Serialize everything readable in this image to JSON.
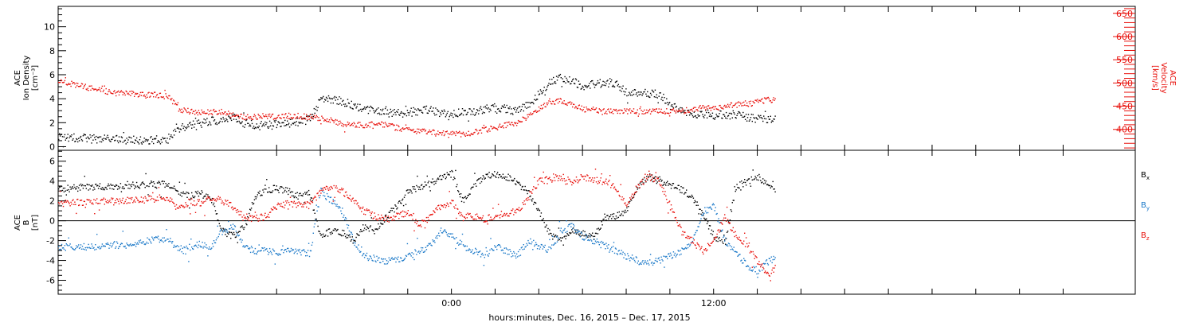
{
  "chart_data": [
    {
      "type": "scatter",
      "panel": "top",
      "x_hours": [
        -18,
        12.5
      ],
      "left_axis": {
        "ylabel_lines": [
          "ACE",
          "Ion Density",
          "[cm⁻³]"
        ],
        "ylim": [
          -0.3,
          11.7
        ],
        "ticks": [
          0,
          2,
          4,
          6,
          8,
          10
        ],
        "tick_labels": [
          "0",
          "2",
          "4",
          "6",
          "8",
          "10"
        ]
      },
      "right_axis": {
        "ylabel_lines": [
          "ACE",
          "Velocity",
          "[km/s]"
        ],
        "ylim": [
          355,
          665
        ],
        "ticks": [
          400,
          450,
          500,
          550,
          600,
          650
        ],
        "tick_labels": [
          "400",
          "450",
          "500",
          "550",
          "600",
          "650"
        ],
        "color": "#e8100b"
      },
      "series": [
        {
          "color": "#000000",
          "axis": "left",
          "x": [
            -18,
            -17.5,
            -17,
            -16.5,
            -16,
            -15.5,
            -15,
            -14.5,
            -14,
            -13.5,
            -13,
            -12.5,
            -12,
            -11.5,
            -11,
            -10.5,
            -10,
            -9.5,
            -9,
            -8.5,
            -8,
            -7.5,
            -7,
            -6.5,
            -6,
            -5.5,
            -5,
            -4.5,
            -4,
            -3.5,
            -3,
            -2.5,
            -2,
            -1.5,
            -1,
            -0.5,
            0,
            0.5,
            1,
            1.5,
            2,
            2.5,
            3,
            3.5,
            4,
            4.5,
            5,
            5.5,
            6,
            6.5,
            7,
            7.5,
            8,
            8.5,
            9,
            9.5,
            10,
            10.5,
            11,
            11.5,
            12,
            12.5,
            13,
            13.5,
            14,
            14.5,
            15
          ],
          "y": [
            0.8,
            0.8,
            0.8,
            0.7,
            0.7,
            0.7,
            0.6,
            0.6,
            0.6,
            0.6,
            0.6,
            1.6,
            1.8,
            2.0,
            2.2,
            2.3,
            2.5,
            2.0,
            1.8,
            1.8,
            1.9,
            2.0,
            2.1,
            2.3,
            4.0,
            4.0,
            3.8,
            3.5,
            3.2,
            3.0,
            2.9,
            2.8,
            2.9,
            3.0,
            3.2,
            2.8,
            2.7,
            3.0,
            3.0,
            3.2,
            3.3,
            3.2,
            3.0,
            3.5,
            4.5,
            5.5,
            5.8,
            5.5,
            5.0,
            5.3,
            5.3,
            5.3,
            4.5,
            4.5,
            4.5,
            4.4,
            3.5,
            3.0,
            2.8,
            2.8,
            2.7,
            2.7,
            2.7,
            2.5,
            2.4,
            2.3,
            2.5
          ]
        },
        {
          "color": "#e8100b",
          "axis": "right",
          "x": [
            -18,
            -17.5,
            -17,
            -16.5,
            -16,
            -15.5,
            -15,
            -14.5,
            -14,
            -13.5,
            -13,
            -12.5,
            -12,
            -11.5,
            -11,
            -10.5,
            -10,
            -9.5,
            -9,
            -8.5,
            -8,
            -7.5,
            -7,
            -6.5,
            -6,
            -5.5,
            -5,
            -4.5,
            -4,
            -3.5,
            -3,
            -2.5,
            -2,
            -1.5,
            -1,
            -0.5,
            0,
            0.5,
            1,
            1.5,
            2,
            2.5,
            3,
            3.5,
            4,
            4.5,
            5,
            5.5,
            6,
            6.5,
            7,
            7.5,
            8,
            8.5,
            9,
            9.5,
            10,
            10.5,
            11,
            11.5,
            12,
            12.5,
            13,
            13.5,
            14,
            14.5,
            15
          ],
          "y": [
            505,
            500,
            495,
            490,
            485,
            480,
            478,
            478,
            475,
            475,
            472,
            445,
            440,
            437,
            438,
            440,
            433,
            428,
            428,
            430,
            428,
            430,
            430,
            428,
            425,
            420,
            413,
            412,
            410,
            412,
            412,
            405,
            400,
            397,
            395,
            393,
            392,
            390,
            395,
            400,
            405,
            410,
            415,
            430,
            445,
            460,
            463,
            455,
            445,
            443,
            440,
            440,
            440,
            440,
            440,
            440,
            440,
            440,
            445,
            448,
            448,
            450,
            455,
            455,
            460,
            465,
            460
          ]
        }
      ]
    },
    {
      "type": "scatter",
      "panel": "bottom",
      "ylabel_lines": [
        "ACE",
        "B",
        "[nT]"
      ],
      "ylim": [
        -7.4,
        7.1
      ],
      "ticks": [
        -6,
        -4,
        -2,
        0,
        2,
        4,
        6
      ],
      "tick_labels": [
        "-6",
        "-4",
        "-2",
        "0",
        "2",
        "4",
        "6"
      ],
      "legend": [
        {
          "label": "B",
          "subscript": "x",
          "color": "#000000"
        },
        {
          "label": "B",
          "subscript": "y",
          "color": "#1a78c8"
        },
        {
          "label": "B",
          "subscript": "z",
          "color": "#e8100b"
        }
      ],
      "series": [
        {
          "color": "#000000",
          "x": [
            -18,
            -17.5,
            -17,
            -16.5,
            -16,
            -15.5,
            -15,
            -14.5,
            -14,
            -13.5,
            -13,
            -12.5,
            -12,
            -11.5,
            -11,
            -10.5,
            -10,
            -9.5,
            -9,
            -8.5,
            -8,
            -7.5,
            -7,
            -6.5,
            -6,
            -5.5,
            -5,
            -4.5,
            -4,
            -3.5,
            -3,
            -2.5,
            -2,
            -1.5,
            -1,
            -0.5,
            0,
            0.5,
            1,
            1.5,
            2,
            2.5,
            3,
            3.5,
            4,
            4.5,
            5,
            5.5,
            6,
            6.5,
            7,
            7.5,
            8,
            8.5,
            9,
            9.5,
            10,
            10.5,
            11,
            11.5,
            12,
            12.5,
            13,
            13.5,
            14,
            14.5,
            15
          ],
          "y": [
            3.2,
            3.3,
            3.4,
            3.4,
            3.5,
            3.5,
            3.6,
            3.6,
            3.7,
            3.7,
            3.8,
            3.0,
            2.5,
            2.8,
            2.2,
            -1.0,
            -1.5,
            -0.5,
            2.5,
            3.2,
            3.3,
            3.0,
            2.5,
            2.8,
            -1.5,
            -1.0,
            -1.2,
            -2.0,
            -0.5,
            -1.0,
            0.5,
            1.5,
            3.0,
            3.5,
            3.8,
            4.5,
            4.8,
            2.0,
            3.5,
            4.5,
            4.8,
            4.5,
            3.8,
            3.0,
            1.0,
            -1.5,
            -1.8,
            -1.0,
            -1.2,
            -1.5,
            0.2,
            0.5,
            1.0,
            3.5,
            4.5,
            4.0,
            3.6,
            3.2,
            2.5,
            0.5,
            -1.5,
            -2.2,
            3.5,
            4.0,
            4.5,
            3.5,
            2.5
          ]
        },
        {
          "color": "#1a78c8",
          "x": [
            -18,
            -17.5,
            -17,
            -16.5,
            -16,
            -15.5,
            -15,
            -14.5,
            -14,
            -13.5,
            -13,
            -12.5,
            -12,
            -11.5,
            -11,
            -10.5,
            -10,
            -9.5,
            -9,
            -8.5,
            -8,
            -7.5,
            -7,
            -6.5,
            -6,
            -5.5,
            -5,
            -4.5,
            -4,
            -3.5,
            -3,
            -2.5,
            -2,
            -1.5,
            -1,
            -0.5,
            0,
            0.5,
            1,
            1.5,
            2,
            2.5,
            3,
            3.5,
            4,
            4.5,
            5,
            5.5,
            6,
            6.5,
            7,
            7.5,
            8,
            8.5,
            9,
            9.5,
            10,
            10.5,
            11,
            11.5,
            12,
            12.5,
            13,
            13.5,
            14,
            14.5,
            15
          ],
          "y": [
            -2.6,
            -2.6,
            -2.6,
            -2.5,
            -2.5,
            -2.4,
            -2.4,
            -2.3,
            -2.0,
            -1.8,
            -1.8,
            -2.8,
            -2.6,
            -2.3,
            -2.5,
            -1.0,
            -0.5,
            -2.5,
            -3.0,
            -3.0,
            -3.2,
            -3.0,
            -3.1,
            -3.3,
            3.0,
            2.0,
            1.0,
            -2.0,
            -3.5,
            -3.8,
            -4.0,
            -3.8,
            -3.5,
            -3.0,
            -2.5,
            -1.0,
            -1.5,
            -2.5,
            -3.0,
            -3.5,
            -2.5,
            -3.0,
            -3.5,
            -2.0,
            -2.5,
            -3.0,
            -1.0,
            -0.5,
            -1.5,
            -2.0,
            -2.5,
            -3.0,
            -3.5,
            -4.0,
            -4.2,
            -4.0,
            -3.5,
            -3.0,
            -2.0,
            1.0,
            1.5,
            -2.0,
            -3.0,
            -4.5,
            -5.0,
            -4.0,
            -3.5
          ]
        },
        {
          "color": "#e8100b",
          "x": [
            -18,
            -17.5,
            -17,
            -16.5,
            -16,
            -15.5,
            -15,
            -14.5,
            -14,
            -13.5,
            -13,
            -12.5,
            -12,
            -11.5,
            -11,
            -10.5,
            -10,
            -9.5,
            -9,
            -8.5,
            -8,
            -7.5,
            -7,
            -6.5,
            -6,
            -5.5,
            -5,
            -4.5,
            -4,
            -3.5,
            -3,
            -2.5,
            -2,
            -1.5,
            -1,
            -0.5,
            0,
            0.5,
            1,
            1.5,
            2,
            2.5,
            3,
            3.5,
            4,
            4.5,
            5,
            5.5,
            6,
            6.5,
            7,
            7.5,
            8,
            8.5,
            9,
            9.5,
            10,
            10.5,
            11,
            11.5,
            12,
            12.5,
            13,
            13.5,
            14,
            14.5,
            15
          ],
          "y": [
            1.8,
            1.8,
            1.9,
            1.9,
            2.0,
            2.0,
            2.1,
            2.1,
            2.2,
            2.3,
            2.3,
            1.2,
            2.0,
            1.8,
            2.5,
            2.0,
            1.5,
            0.5,
            0.3,
            0.5,
            1.5,
            1.8,
            1.7,
            1.6,
            3.0,
            3.5,
            3.0,
            2.0,
            1.0,
            0.5,
            0.2,
            0.5,
            1.0,
            -0.5,
            0.5,
            1.5,
            2.0,
            0.3,
            0.5,
            0.2,
            0.6,
            0.8,
            1.0,
            2.5,
            4.0,
            4.2,
            4.5,
            4.0,
            4.5,
            4.2,
            4.0,
            3.5,
            1.5,
            3.5,
            4.5,
            4.0,
            1.5,
            -1.0,
            -2.0,
            -3.0,
            -2.0,
            0.5,
            -1.5,
            -2.5,
            -4.0,
            -5.5,
            -4.0
          ]
        }
      ]
    }
  ],
  "x_axis": {
    "label": "hours:minutes, Dec. 16, 2015 – Dec. 17, 2015",
    "tick_labels": [
      {
        "hour": 0,
        "label": "0:00"
      },
      {
        "hour": 12,
        "label": "12:00"
      }
    ],
    "minor_tick_hours": [
      -8,
      -6,
      -4,
      -2,
      0,
      2,
      4,
      6,
      8,
      10,
      12,
      14,
      16,
      18,
      20,
      22,
      24,
      26,
      28
    ]
  }
}
